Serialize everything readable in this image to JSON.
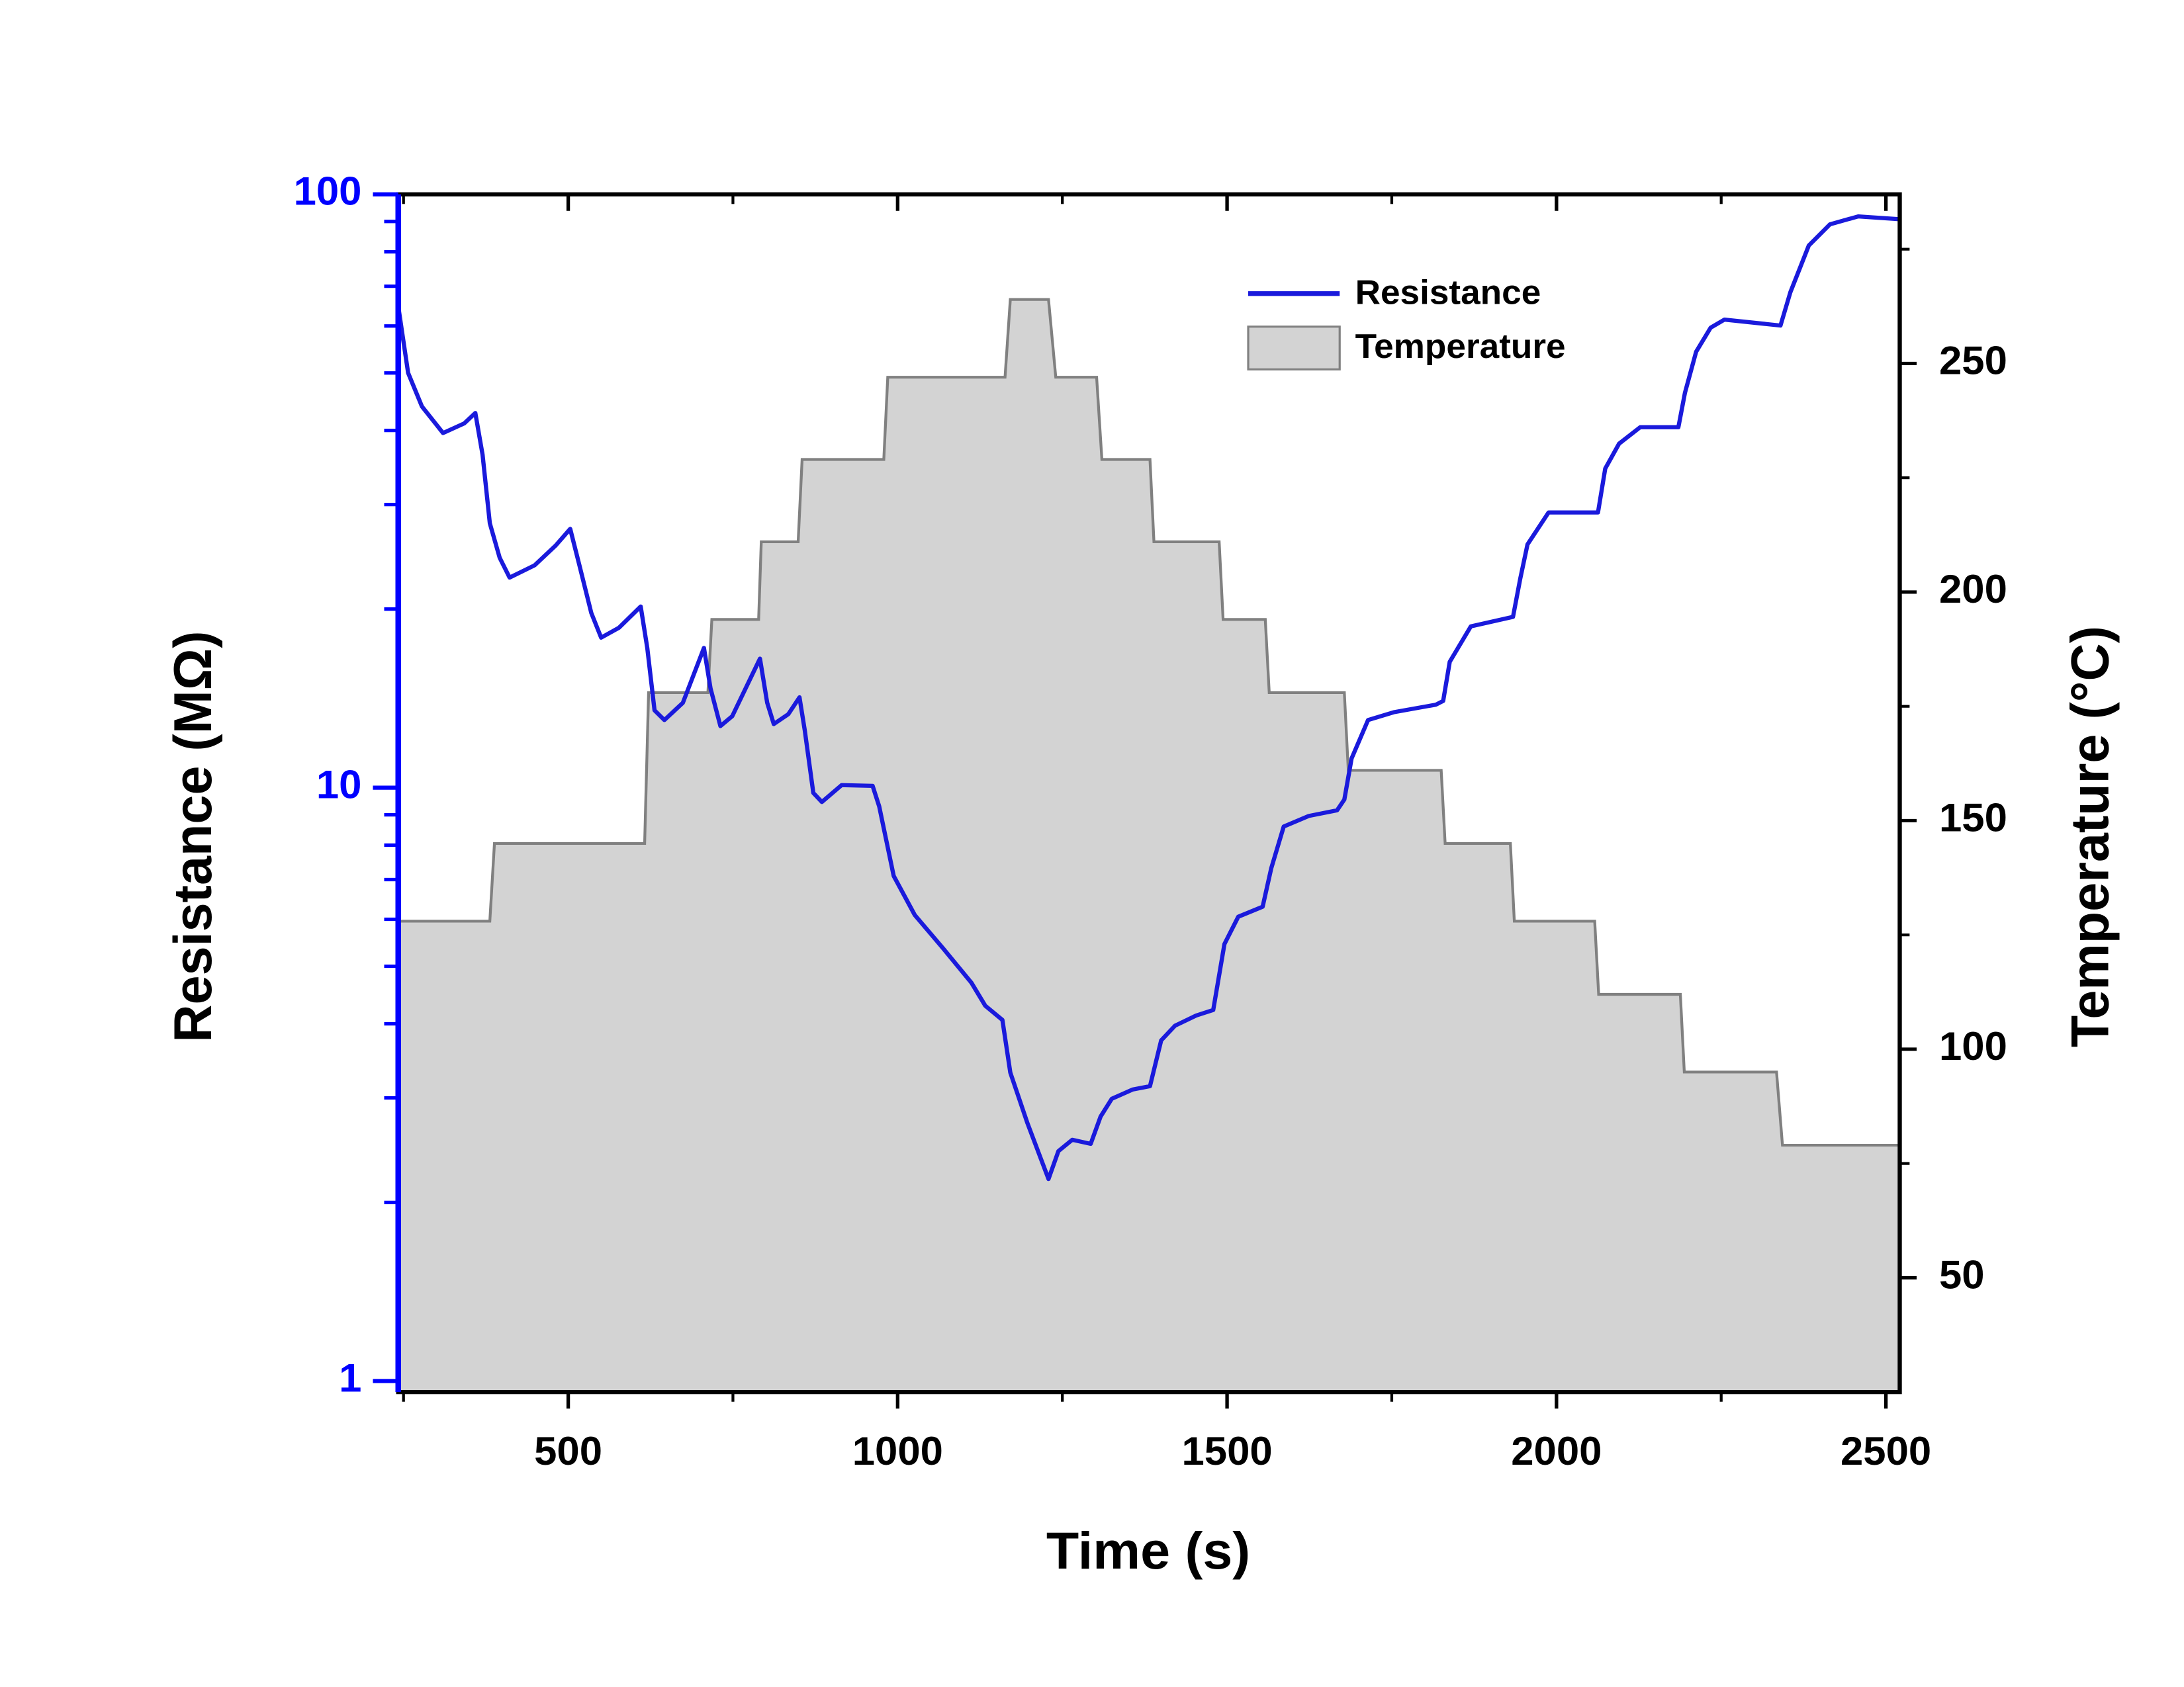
{
  "chart_data": {
    "type": "line",
    "xlabel": "Time (s)",
    "ylabel": "Resistance (MΩ)",
    "y2label": "Temperature (°C)",
    "xlim": [
      242,
      2521
    ],
    "xticks": [
      500,
      1000,
      1500,
      2000,
      2500
    ],
    "xminorticks": [
      250,
      750,
      1250,
      1750,
      2250
    ],
    "ylim": [
      0.958,
      100
    ],
    "yscale": "log",
    "yticks": [
      1,
      10,
      100
    ],
    "yminorticks": [
      2,
      3,
      4,
      5,
      6,
      7,
      8,
      9,
      20,
      30,
      40,
      50,
      60,
      70,
      80,
      90
    ],
    "y2lim": [
      25,
      287
    ],
    "y2ticks": [
      50,
      100,
      150,
      200,
      250
    ],
    "y2minorticks": [
      75,
      125,
      175,
      225,
      275
    ],
    "legend": "upper right",
    "series": [
      {
        "name": "Temperature",
        "axis": "y2",
        "color": "#808080",
        "fill": "#d3d3d3",
        "x": [
          242,
          381,
          388,
          616,
          622,
          712,
          718,
          789,
          793,
          849,
          855,
          979,
          985,
          1163,
          1171,
          1229,
          1240,
          1302,
          1310,
          1383,
          1389,
          1488,
          1494,
          1558,
          1564,
          1678,
          1684,
          1825,
          1831,
          1930,
          1936,
          2058,
          2064,
          2188,
          2194,
          2334,
          2343,
          2521
        ],
        "values": [
          128,
          128,
          145,
          145,
          178,
          178,
          194,
          194,
          211,
          211,
          229,
          229,
          247,
          247,
          264,
          264,
          247,
          247,
          229,
          229,
          211,
          211,
          194,
          194,
          178,
          178,
          161,
          161,
          145,
          145,
          128,
          128,
          112,
          112,
          95,
          95,
          79,
          79
        ]
      },
      {
        "name": "Resistance",
        "axis": "y",
        "color": "#1a1adc",
        "x": [
          242,
          257,
          278,
          310,
          342,
          359,
          370,
          381,
          396,
          411,
          449,
          481,
          503,
          517,
          535,
          550,
          577,
          610,
          620,
          631,
          646,
          674,
          706,
          716,
          731,
          749,
          791,
          802,
          812,
          834,
          851,
          859,
          872,
          885,
          915,
          962,
          972,
          994,
          1026,
          1069,
          1112,
          1133,
          1159,
          1171,
          1197,
          1229,
          1244,
          1265,
          1293,
          1308,
          1325,
          1357,
          1383,
          1400,
          1421,
          1453,
          1479,
          1496,
          1517,
          1554,
          1567,
          1586,
          1624,
          1667,
          1678,
          1689,
          1714,
          1753,
          1817,
          1828,
          1838,
          1870,
          1934,
          1945,
          1956,
          1988,
          2063,
          2074,
          2095,
          2127,
          2185,
          2195,
          2212,
          2234,
          2255,
          2340,
          2355,
          2383,
          2415,
          2458,
          2521
        ],
        "values": [
          64.8,
          50,
          43.9,
          39.6,
          41.1,
          42.8,
          36.4,
          27.9,
          24.4,
          22.6,
          23.7,
          25.6,
          27.3,
          23.7,
          19.7,
          17.9,
          18.6,
          20.2,
          17.2,
          13.5,
          13.0,
          13.9,
          17.2,
          14.7,
          12.7,
          13.2,
          16.5,
          13.9,
          12.8,
          13.3,
          14.2,
          12.5,
          9.8,
          9.46,
          10.1,
          10.07,
          9.3,
          7.1,
          6.1,
          5.36,
          4.69,
          4.29,
          4.06,
          3.31,
          2.72,
          2.19,
          2.44,
          2.55,
          2.51,
          2.79,
          2.99,
          3.1,
          3.14,
          3.75,
          3.97,
          4.13,
          4.22,
          5.45,
          6.06,
          6.3,
          7.31,
          8.6,
          8.96,
          9.16,
          9.55,
          11.2,
          13.0,
          13.4,
          13.8,
          14.0,
          16.3,
          18.7,
          19.4,
          22.5,
          25.7,
          29.1,
          29.1,
          34.5,
          38.0,
          40.5,
          40.5,
          46.3,
          54.3,
          59.6,
          61.5,
          60.1,
          68.4,
          82.0,
          89,
          91.8,
          90.8
        ]
      }
    ]
  }
}
